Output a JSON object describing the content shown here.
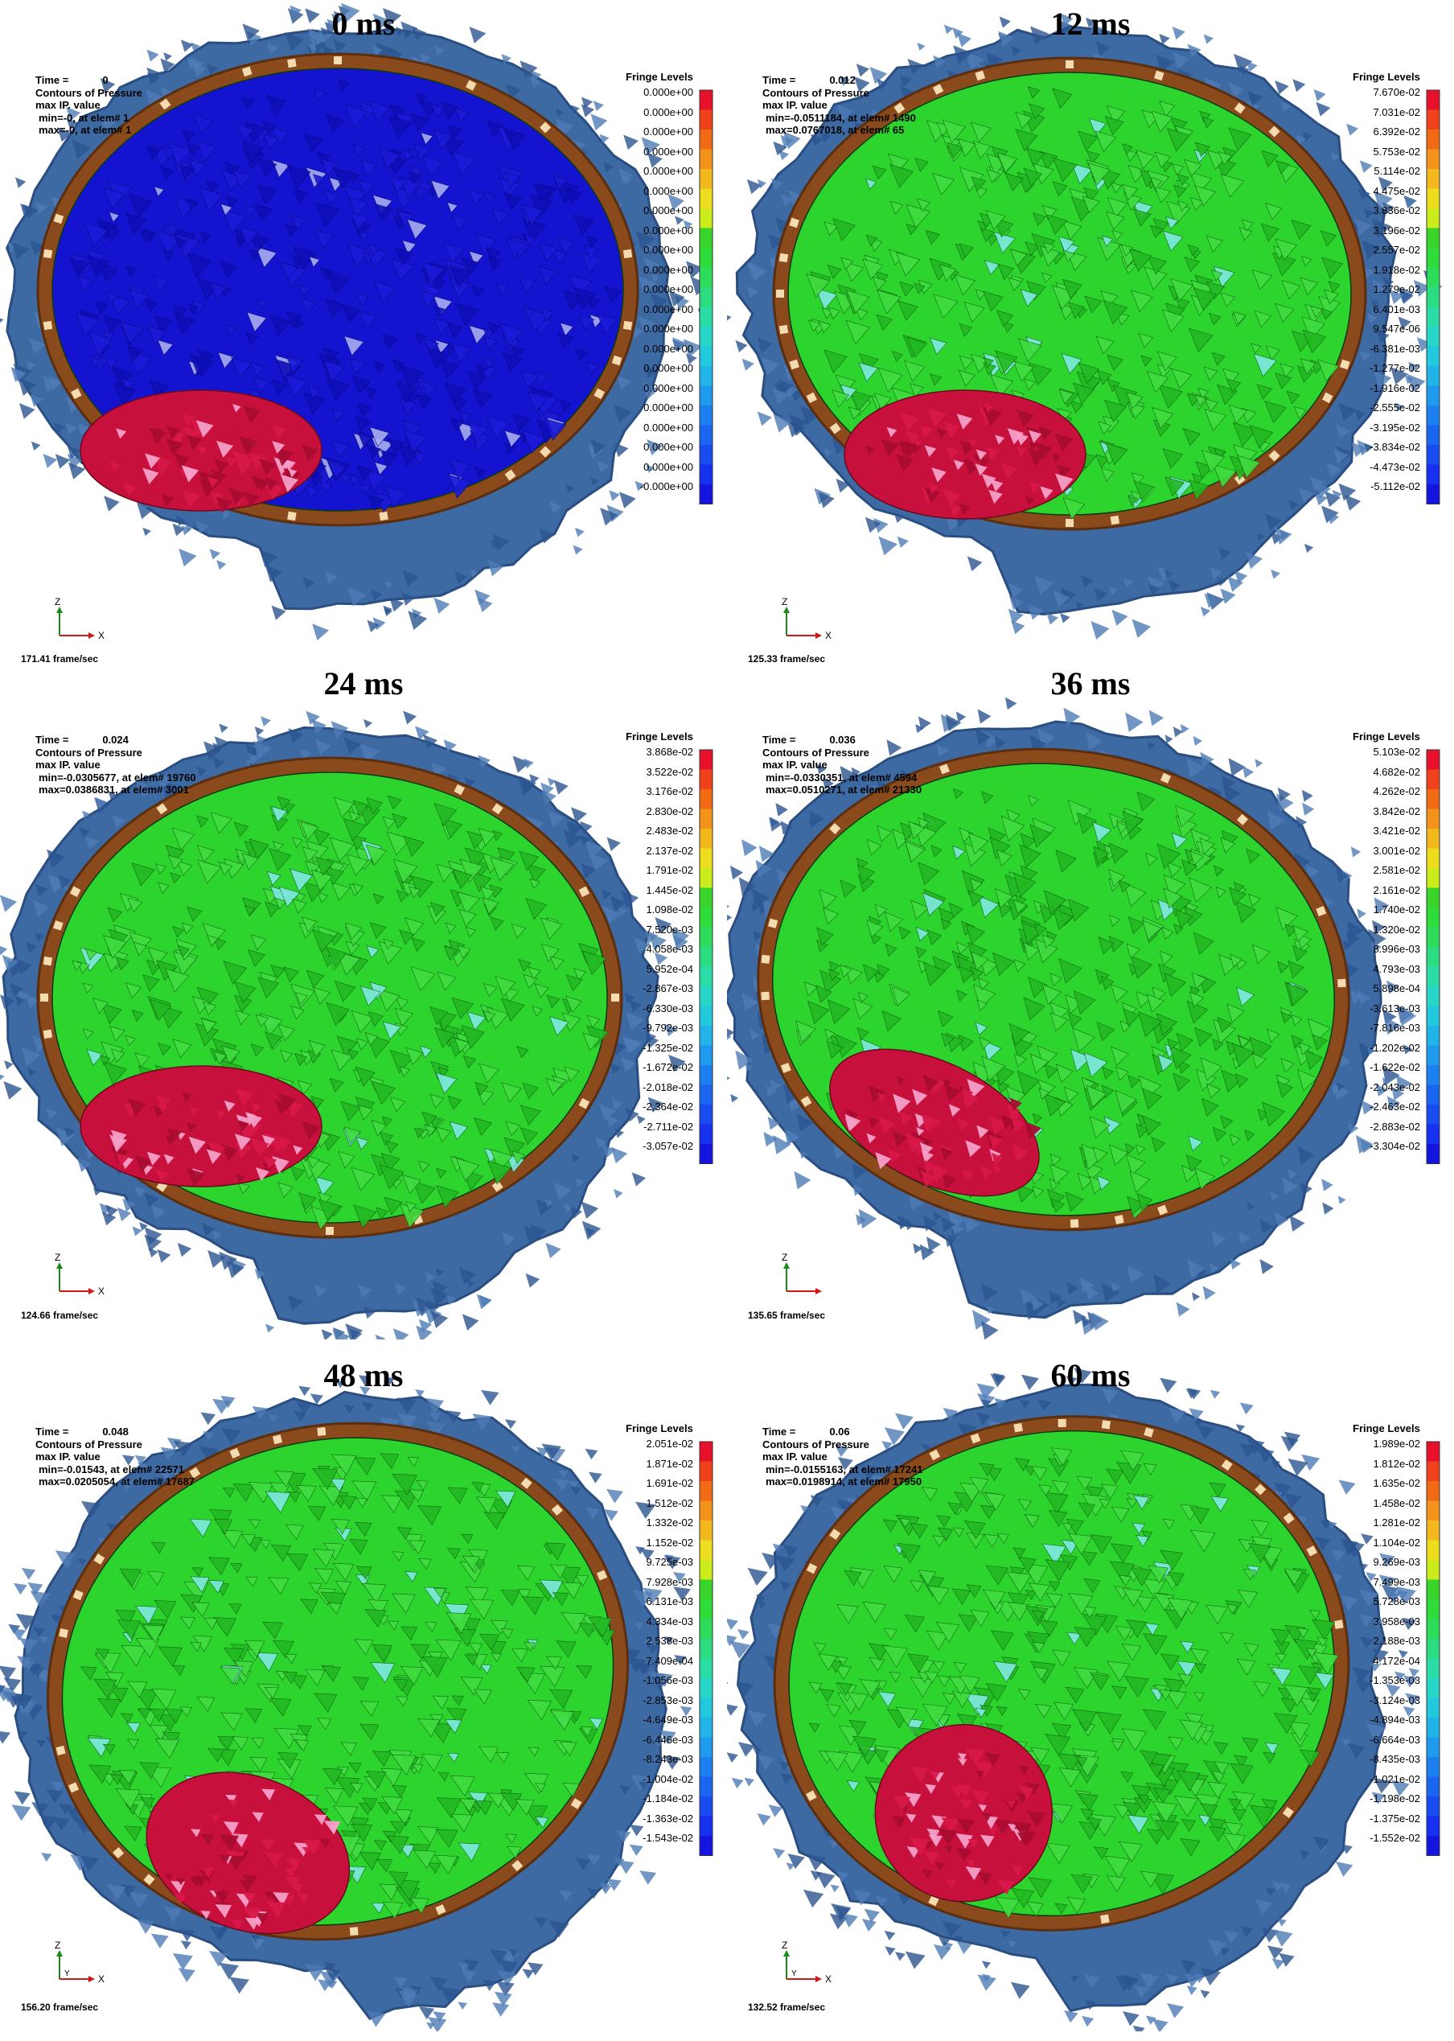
{
  "panels": [
    {
      "title": "0 ms",
      "time_label": "Time =",
      "time_value": "0",
      "contours": "Contours of Pressure",
      "value_type": "max IP. value",
      "min_line": "min=-0, at elem# 1",
      "max_line": "max=-0, at elem# 1",
      "fringe_title": "Fringe Levels",
      "fringe_levels": [
        "0.000e+00",
        "0.000e+00",
        "0.000e+00",
        "0.000e+00",
        "0.000e+00",
        "0.000e+00",
        "0.000e+00",
        "0.000e+00",
        "0.000e+00",
        "0.000e+00",
        "0.000e+00",
        "0.000e+00",
        "0.000e+00",
        "0.000e+00",
        "0.000e+00",
        "0.000e+00",
        "0.000e+00",
        "0.000e+00",
        "0.000e+00",
        "0.000e+00",
        "-0.000e+00"
      ],
      "fps": "171.41 frame/sec",
      "brain_color": "#1414d0",
      "axis_z": "Z",
      "axis_x": "X",
      "axis_y": ""
    },
    {
      "title": "12 ms",
      "time_label": "Time =",
      "time_value": "0.012",
      "contours": "Contours of Pressure",
      "value_type": "max IP. value",
      "min_line": "min=-0.0511184, at elem# 1490",
      "max_line": "max=0.0767018, at elem# 65",
      "fringe_title": "Fringe Levels",
      "fringe_levels": [
        "7.670e-02",
        "7.031e-02",
        "6.392e-02",
        "5.753e-02",
        "5.114e-02",
        "4.475e-02",
        "3.836e-02",
        "3.196e-02",
        "2.557e-02",
        "1.918e-02",
        "1.279e-02",
        "6.401e-03",
        "9.547e-06",
        "-6.381e-03",
        "-1.277e-02",
        "-1.916e-02",
        "-2.555e-02",
        "-3.195e-02",
        "-3.834e-02",
        "-4.473e-02",
        "-5.112e-02"
      ],
      "fps": "125.33 frame/sec",
      "brain_color": "#2ed42e",
      "axis_z": "Z",
      "axis_x": "X",
      "axis_y": ""
    },
    {
      "title": "24 ms",
      "time_label": "Time =",
      "time_value": "0.024",
      "contours": "Contours of Pressure",
      "value_type": "max IP. value",
      "min_line": "min=-0.0305677, at elem# 19760",
      "max_line": "max=0.0386831, at elem# 3001",
      "fringe_title": "Fringe Levels",
      "fringe_levels": [
        "3.868e-02",
        "3.522e-02",
        "3.176e-02",
        "2.830e-02",
        "2.483e-02",
        "2.137e-02",
        "1.791e-02",
        "1.445e-02",
        "1.098e-02",
        "7.520e-03",
        "4.058e-03",
        "5.952e-04",
        "-2.867e-03",
        "-6.330e-03",
        "-9.792e-03",
        "-1.325e-02",
        "-1.672e-02",
        "-2.018e-02",
        "-2.364e-02",
        "-2.711e-02",
        "-3.057e-02"
      ],
      "fps": "124.66 frame/sec",
      "brain_color": "#2ed42e",
      "axis_z": "Z",
      "axis_x": "X",
      "axis_y": ""
    },
    {
      "title": "36 ms",
      "time_label": "Time =",
      "time_value": "0.036",
      "contours": "Contours of Pressure",
      "value_type": "max IP. value",
      "min_line": "min=-0.0330351, at elem# 4594",
      "max_line": "max=0.0510271, at elem# 21330",
      "fringe_title": "Fringe Levels",
      "fringe_levels": [
        "5.103e-02",
        "4.682e-02",
        "4.262e-02",
        "3.842e-02",
        "3.421e-02",
        "3.001e-02",
        "2.581e-02",
        "2.161e-02",
        "1.740e-02",
        "1.320e-02",
        "8.996e-03",
        "4.793e-03",
        "5.898e-04",
        "-3.613e-03",
        "-7.816e-03",
        "-1.202e-02",
        "-1.622e-02",
        "-2.043e-02",
        "-2.463e-02",
        "-2.883e-02",
        "-3.304e-02"
      ],
      "fps": "135.65 frame/sec",
      "brain_color": "#2ed42e",
      "axis_z": "Z",
      "axis_x": "",
      "axis_y": ""
    },
    {
      "title": "48 ms",
      "time_label": "Time =",
      "time_value": "0.048",
      "contours": "Contours of Pressure",
      "value_type": "max IP. value",
      "min_line": "min=-0.01543, at elem# 22571",
      "max_line": "max=0.0205054, at elem# 17687",
      "fringe_title": "Fringe Levels",
      "fringe_levels": [
        "2.051e-02",
        "1.871e-02",
        "1.691e-02",
        "1.512e-02",
        "1.332e-02",
        "1.152e-02",
        "9.725e-03",
        "7.928e-03",
        "6.131e-03",
        "4.334e-03",
        "2.538e-03",
        "7.409e-04",
        "-1.056e-03",
        "-2.853e-03",
        "-4.649e-03",
        "-6.446e-03",
        "-8.243e-03",
        "-1.004e-02",
        "-1.184e-02",
        "-1.363e-02",
        "-1.543e-02"
      ],
      "fps": "156.20 frame/sec",
      "brain_color": "#2ed42e",
      "axis_z": "Z",
      "axis_x": "X",
      "axis_y": "Y"
    },
    {
      "title": "60 ms",
      "time_label": "Time =",
      "time_value": "0.06",
      "contours": "Contours of Pressure",
      "value_type": "max IP. value",
      "min_line": "min=-0.0155163, at elem# 17241",
      "max_line": "max=0.0198914, at elem# 17950",
      "fringe_title": "Fringe Levels",
      "fringe_levels": [
        "1.989e-02",
        "1.812e-02",
        "1.635e-02",
        "1.458e-02",
        "1.281e-02",
        "1.104e-02",
        "9.269e-03",
        "7.499e-03",
        "5.728e-03",
        "3.958e-03",
        "2.188e-03",
        "4.172e-04",
        "-1.353e-03",
        "-3.124e-03",
        "-4.894e-03",
        "-6.664e-03",
        "-8.435e-03",
        "-1.021e-02",
        "-1.198e-02",
        "-1.375e-02",
        "-1.552e-02"
      ],
      "fps": "132.52 frame/sec",
      "brain_color": "#2ed42e",
      "axis_z": "Z",
      "axis_x": "X",
      "axis_y": "Y"
    }
  ],
  "fringe_colors": [
    "#e8102a",
    "#f0401c",
    "#f26a14",
    "#f4931a",
    "#f3b81c",
    "#eedd1c",
    "#c9ec1a",
    "#38d42a",
    "#2edc3a",
    "#2edc5c",
    "#2cdc80",
    "#2adca6",
    "#26d6c6",
    "#22c8dc",
    "#20b4e8",
    "#1e9aee",
    "#1c80f0",
    "#1a66f0",
    "#184cf0",
    "#1632f0",
    "#1414e0"
  ],
  "colors": {
    "skull": "#3d6aa3",
    "skull_dark": "#2a4e82",
    "csf": "#8a4a1c",
    "csf_light": "#f5dcb0",
    "cerebellum": "#c8103c",
    "cerebellum_light": "#f4a0c8"
  }
}
